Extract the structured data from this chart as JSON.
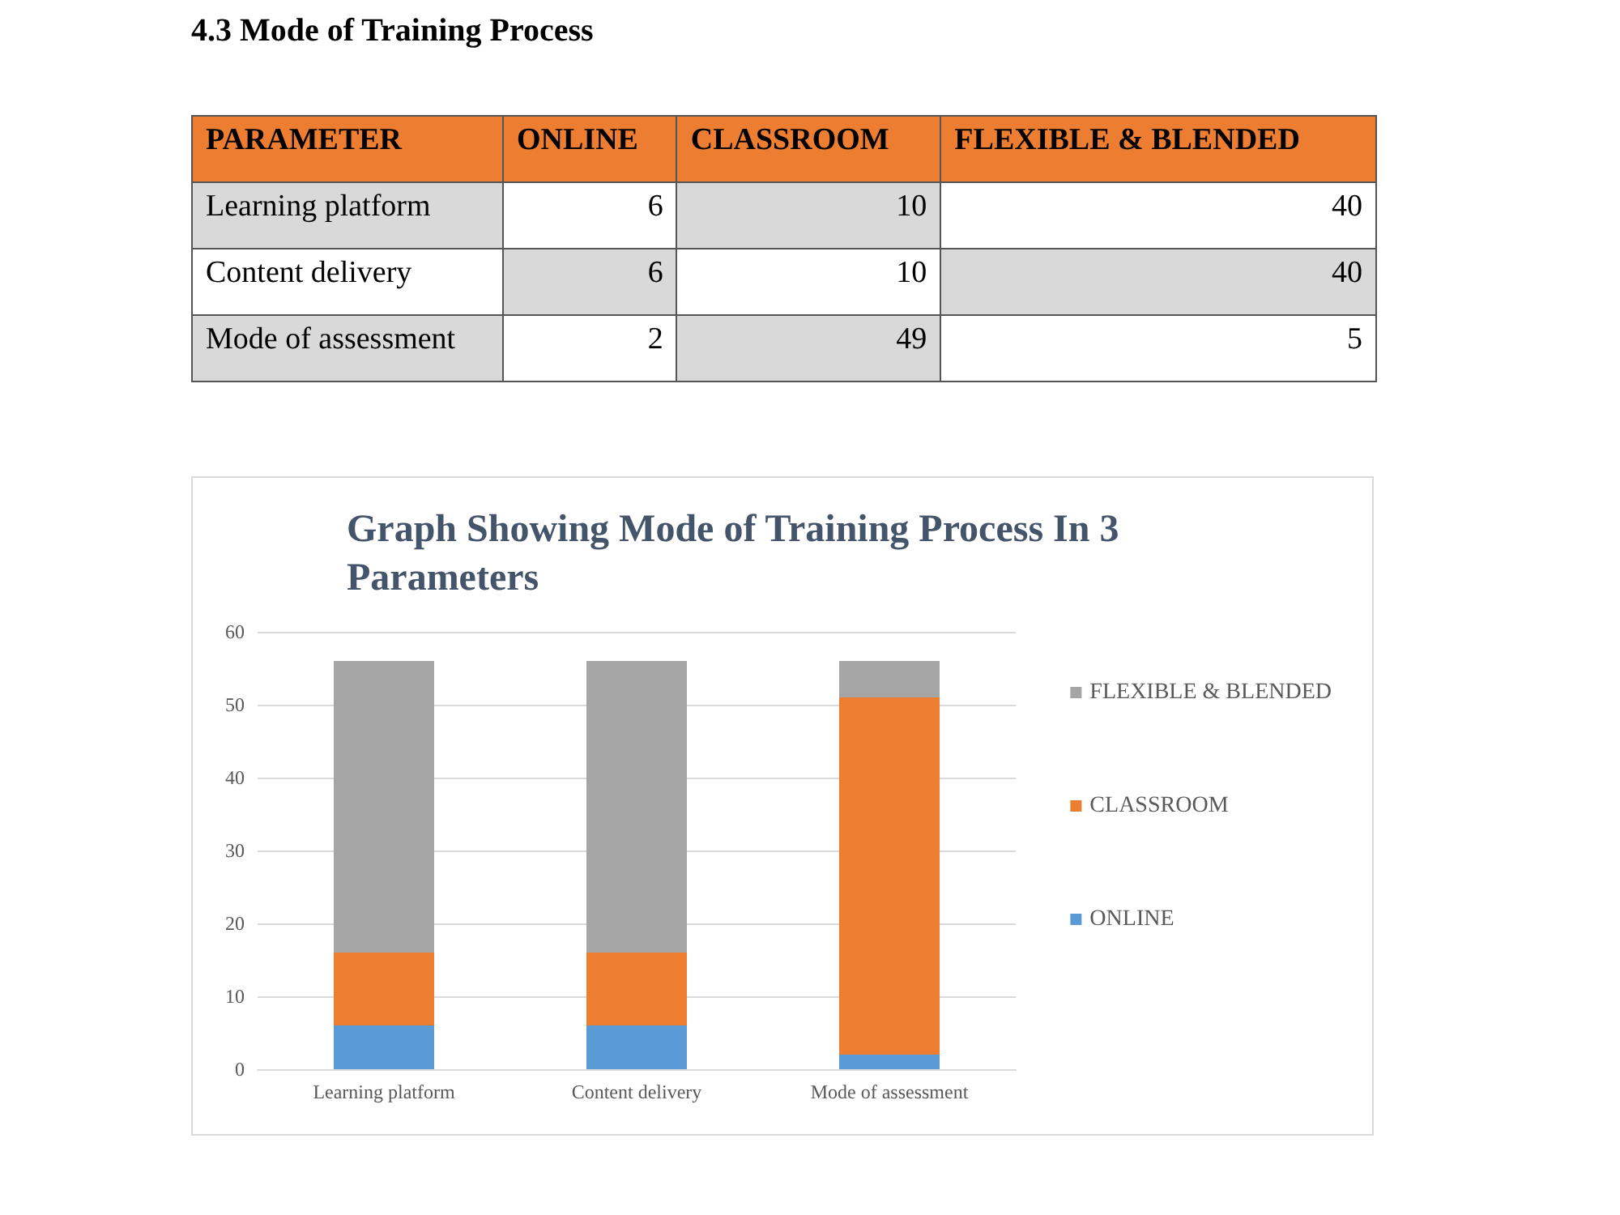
{
  "chart_data": [
    {
      "type": "other",
      "title": "4.3 Mode of Training Process",
      "annotations": [
        "PARAMETER"
      ],
      "categories": [
        "ONLINE",
        "CLASSROOM",
        "FLEXIBLE & BLENDED"
      ],
      "y_categories": [
        "Learning platform",
        "Content delivery",
        "Mode of assessment"
      ],
      "cell_labels": [
        [
          "6",
          "10",
          "40"
        ],
        [
          "6",
          "10",
          "40"
        ],
        [
          "2",
          "49",
          "5"
        ]
      ]
    },
    {
      "type": "bar",
      "title": "Graph Showing Mode of Training Process In 3 Parameters",
      "categories": [
        "Learning platform",
        "Content delivery",
        "Mode of assessment"
      ],
      "series": [
        {
          "name": "ONLINE",
          "color": "#5b9bd5",
          "values": [
            6,
            6,
            2
          ]
        },
        {
          "name": "CLASSROOM",
          "color": "#ed7d31",
          "values": [
            10,
            10,
            49
          ]
        },
        {
          "name": "FLEXIBLE & BLENDED",
          "color": "#a5a5a5",
          "values": [
            40,
            40,
            5
          ]
        }
      ],
      "stacked": true,
      "ylim": [
        0,
        60
      ],
      "yticks": [
        0,
        10,
        20,
        30,
        40,
        50,
        60
      ],
      "grid": "y",
      "legend": "right"
    }
  ]
}
